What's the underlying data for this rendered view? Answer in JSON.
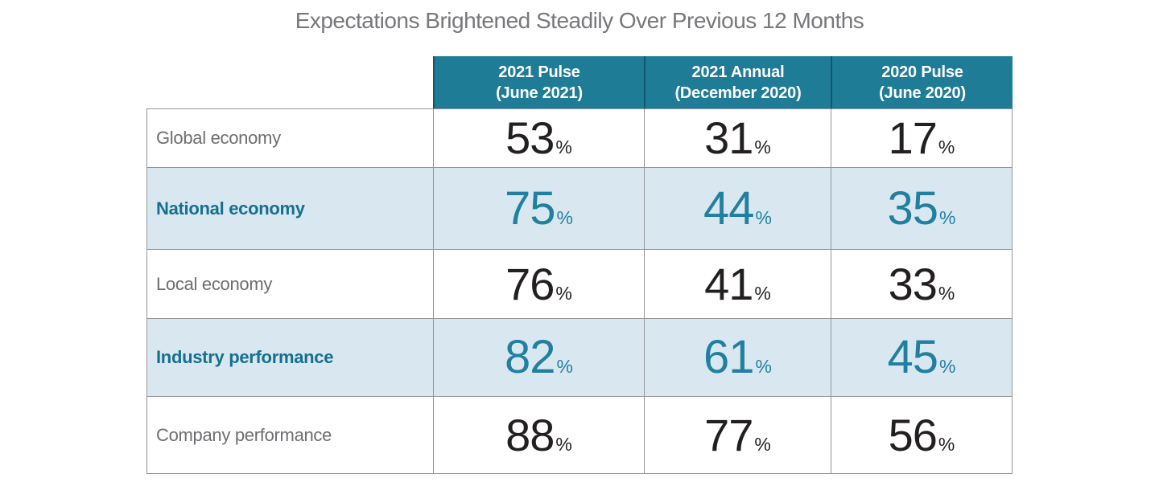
{
  "title": "Expectations Brightened Steadily Over Previous 12 Months",
  "table": {
    "header": [
      {
        "line1": "2021 Pulse",
        "line2": "(June 2021)"
      },
      {
        "line1": "2021 Annual",
        "line2": "(December 2020)"
      },
      {
        "line1": "2020 Pulse",
        "line2": "(June 2020)"
      }
    ],
    "percent_sign": "%",
    "rows": [
      {
        "label": "Global economy",
        "values": [
          "53",
          "31",
          "17"
        ],
        "highlighted": false
      },
      {
        "label": "National economy",
        "values": [
          "75",
          "44",
          "35"
        ],
        "highlighted": true
      },
      {
        "label": "Local economy",
        "values": [
          "76",
          "41",
          "33"
        ],
        "highlighted": false
      },
      {
        "label": "Industry performance",
        "values": [
          "82",
          "61",
          "45"
        ],
        "highlighted": true
      },
      {
        "label": "Company performance",
        "values": [
          "88",
          "77",
          "56"
        ],
        "highlighted": false
      }
    ]
  },
  "colors": {
    "header_teal_bg": "#1f7c97",
    "header_divider": "#14566c",
    "header_text": "#ffffff",
    "highlight_row_bg": "#d9e8f0",
    "teal_label_text": "#156f8e",
    "teal_value_text": "#2180a0",
    "gray_label_text": "#6d6e71",
    "black_value_text": "#231f20",
    "title_gray": "#77787b",
    "border_gray": "#939598"
  },
  "chart_data": {
    "type": "table",
    "title": "Expectations Brightened Steadily Over Previous 12 Months",
    "unit": "percent",
    "columns": [
      "2021 Pulse (June 2021)",
      "2021 Annual (December 2020)",
      "2020 Pulse (June 2020)"
    ],
    "categories": [
      "Global economy",
      "National economy",
      "Local economy",
      "Industry performance",
      "Company performance"
    ],
    "series": [
      {
        "name": "2021 Pulse (June 2021)",
        "values": [
          53,
          75,
          76,
          82,
          88
        ]
      },
      {
        "name": "2021 Annual (December 2020)",
        "values": [
          31,
          44,
          41,
          61,
          77
        ]
      },
      {
        "name": "2020 Pulse (June 2020)",
        "values": [
          17,
          35,
          33,
          45,
          56
        ]
      }
    ],
    "notes": "Highlighted (shaded teal) rows: National economy, Industry performance"
  }
}
